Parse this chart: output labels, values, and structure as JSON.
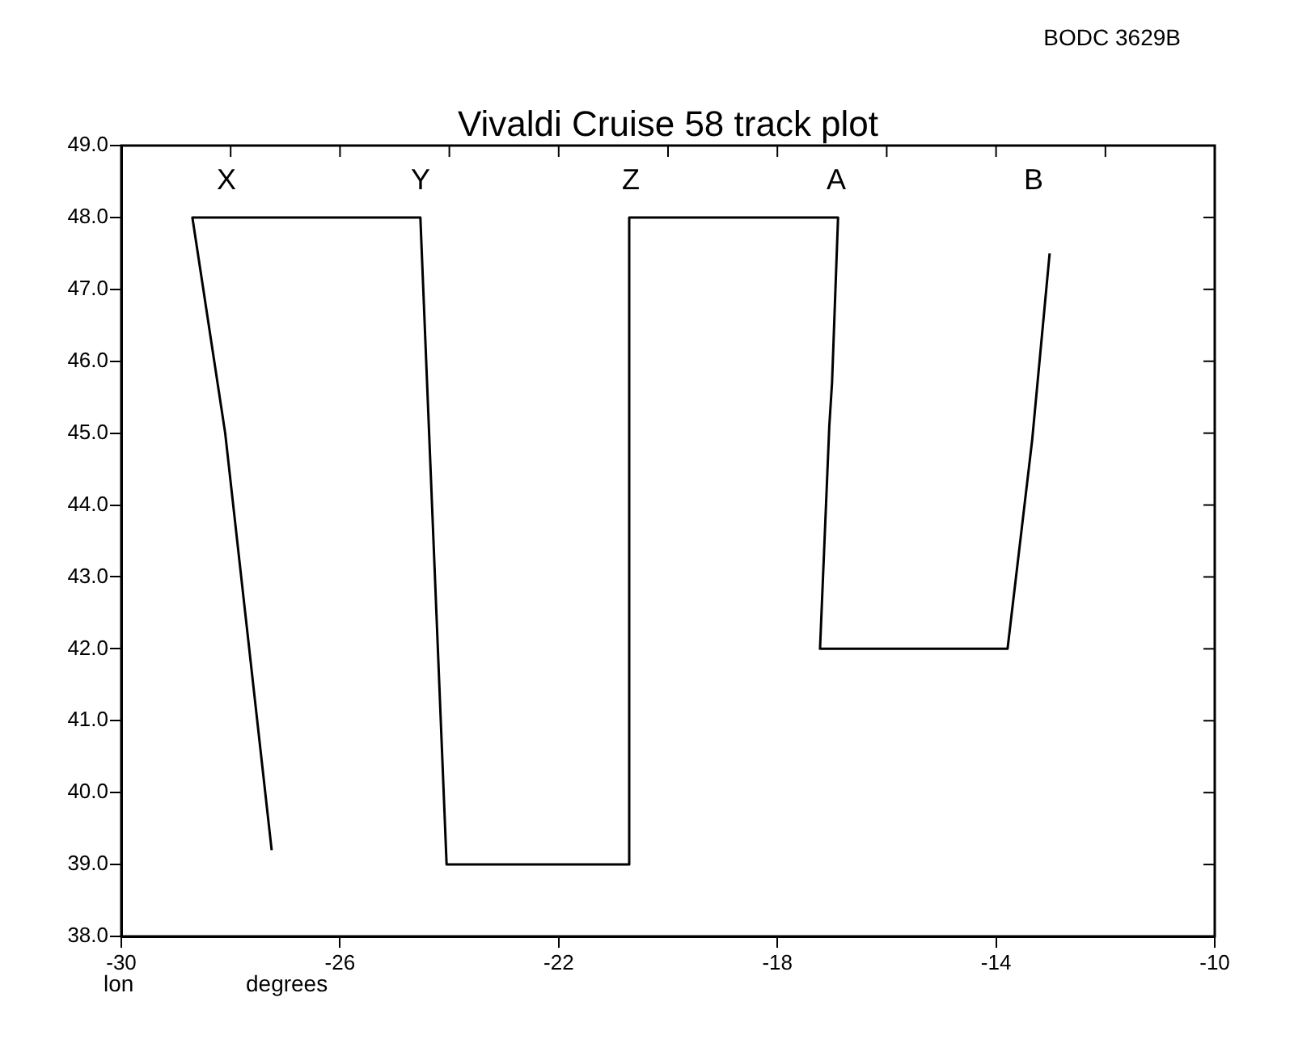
{
  "chart_data": {
    "type": "line",
    "title": "Vivaldi Cruise 58 track plot",
    "xlabel": "lon",
    "x": [
      -27.25,
      -28.1,
      -28.7,
      -24.53,
      -24.05,
      -20.71,
      -20.71,
      -16.89,
      -17.0,
      -17.05,
      -17.22,
      -13.79,
      -13.34,
      -13.02
    ],
    "series": [
      {
        "color": "#000000",
        "values": [
          39.2,
          45.0,
          48.0,
          48.0,
          39.0,
          39.0,
          48.0,
          48.0,
          45.7,
          45.1,
          42.0,
          42.0,
          44.9,
          47.5
        ]
      }
    ],
    "xlim": [
      -30,
      -10
    ],
    "xticks": [
      -30,
      {
        "value": -28,
        "label": null
      },
      -26,
      {
        "value": -24,
        "label": null
      },
      -22,
      {
        "value": -20,
        "label": null
      },
      -18,
      {
        "value": -16,
        "label": null
      },
      -14,
      {
        "value": -12,
        "label": null
      },
      -10
    ],
    "ylim": [
      38,
      49
    ],
    "yticks": [
      {
        "value": 38,
        "label": "38.0"
      },
      {
        "value": 39,
        "label": "39.0"
      },
      {
        "value": 40,
        "label": "40.0"
      },
      {
        "value": 41,
        "label": "41.0"
      },
      {
        "value": 42,
        "label": "42.0"
      },
      {
        "value": 43,
        "label": "43.0"
      },
      {
        "value": 44,
        "label": "44.0"
      },
      {
        "value": 45,
        "label": "45.0"
      },
      {
        "value": 46,
        "label": "46.0"
      },
      {
        "value": 47,
        "label": "47.0"
      },
      {
        "value": 48,
        "label": "48.0"
      },
      {
        "value": 49,
        "label": "49.0"
      }
    ],
    "annotations": [
      "X",
      "Y",
      "Z",
      "A",
      "B",
      "BODC 3629B",
      "degrees"
    ],
    "grid": false,
    "legend": false,
    "marker": "none",
    "line_style": "solid"
  }
}
